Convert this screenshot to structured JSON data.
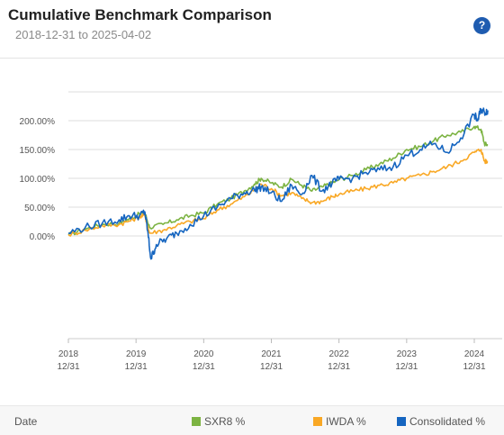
{
  "header": {
    "title": "Cumulative Benchmark Comparison",
    "subtitle": "2018-12-31 to 2025-04-02",
    "help_label": "?"
  },
  "footer": {
    "date_label": "Date"
  },
  "colors": {
    "SXR8": "#7cb342",
    "IWDA": "#f9a825",
    "Consolidated": "#1565c0",
    "grid": "#dcdcdc"
  },
  "chart_data": {
    "type": "line",
    "title": "Cumulative Benchmark Comparison",
    "subtitle": "2018-12-31 to 2025-04-02",
    "xlabel": "Date",
    "ylabel": "",
    "ylim": [
      -50,
      260
    ],
    "y_ticks": [
      0,
      50,
      100,
      150,
      200
    ],
    "y_tick_labels": [
      "0.00%",
      "50.00%",
      "100.00%",
      "150.00%",
      "200.00%"
    ],
    "x_tick_labels": [
      {
        "year": "2018",
        "day": "12/31",
        "t": 0
      },
      {
        "year": "2019",
        "day": "12/31",
        "t": 1
      },
      {
        "year": "2020",
        "day": "12/31",
        "t": 2
      },
      {
        "year": "2021",
        "day": "12/31",
        "t": 3
      },
      {
        "year": "2022",
        "day": "12/31",
        "t": 4
      },
      {
        "year": "2023",
        "day": "12/31",
        "t": 5
      },
      {
        "year": "2024",
        "day": "12/31",
        "t": 6
      }
    ],
    "x_range": [
      0,
      6.25
    ],
    "legend_position": "bottom-right",
    "grid": true,
    "series": [
      {
        "name": "SXR8 %",
        "color": "#7cb342",
        "x": [
          0,
          0.25,
          0.5,
          0.75,
          0.9,
          1.05,
          1.13,
          1.2,
          1.4,
          1.6,
          1.8,
          2.0,
          2.2,
          2.4,
          2.6,
          2.75,
          2.85,
          3.0,
          3.15,
          3.3,
          3.45,
          3.6,
          3.75,
          3.9,
          4.0,
          4.2,
          4.4,
          4.6,
          4.8,
          5.0,
          5.2,
          5.4,
          5.6,
          5.8,
          6.0,
          6.1,
          6.15,
          6.2
        ],
        "values": [
          2,
          12,
          20,
          22,
          30,
          38,
          40,
          15,
          20,
          28,
          35,
          40,
          55,
          65,
          78,
          90,
          100,
          92,
          85,
          98,
          88,
          78,
          85,
          92,
          98,
          105,
          115,
          125,
          135,
          150,
          155,
          165,
          175,
          180,
          190,
          185,
          160,
          158
        ]
      },
      {
        "name": "IWDA %",
        "color": "#f9a825",
        "x": [
          0,
          0.25,
          0.5,
          0.75,
          0.9,
          1.05,
          1.13,
          1.2,
          1.4,
          1.6,
          1.8,
          2.0,
          2.2,
          2.4,
          2.6,
          2.75,
          2.85,
          3.0,
          3.15,
          3.3,
          3.45,
          3.6,
          3.75,
          3.9,
          4.0,
          4.2,
          4.4,
          4.6,
          4.8,
          5.0,
          5.2,
          5.4,
          5.6,
          5.8,
          6.0,
          6.1,
          6.15,
          6.2
        ],
        "values": [
          2,
          10,
          18,
          20,
          26,
          33,
          36,
          5,
          10,
          18,
          25,
          30,
          45,
          55,
          68,
          80,
          90,
          82,
          70,
          75,
          65,
          58,
          60,
          68,
          72,
          78,
          82,
          88,
          92,
          100,
          105,
          112,
          120,
          130,
          145,
          150,
          130,
          128
        ]
      },
      {
        "name": "Consolidated %",
        "color": "#1565c0",
        "x": [
          0,
          0.25,
          0.5,
          0.75,
          0.9,
          1.05,
          1.13,
          1.17,
          1.22,
          1.3,
          1.45,
          1.6,
          1.8,
          2.0,
          2.2,
          2.4,
          2.6,
          2.75,
          2.85,
          3.0,
          3.15,
          3.3,
          3.45,
          3.6,
          3.75,
          3.9,
          4.0,
          4.2,
          4.4,
          4.6,
          4.8,
          5.0,
          5.2,
          5.4,
          5.6,
          5.8,
          6.0,
          6.05,
          6.1,
          6.15,
          6.2
        ],
        "values": [
          5,
          15,
          22,
          28,
          35,
          35,
          42,
          10,
          -40,
          -15,
          -5,
          5,
          20,
          35,
          50,
          65,
          75,
          80,
          85,
          75,
          60,
          88,
          72,
          105,
          78,
          92,
          98,
          100,
          110,
          115,
          120,
          140,
          150,
          160,
          145,
          170,
          210,
          200,
          220,
          215,
          218
        ]
      }
    ]
  }
}
